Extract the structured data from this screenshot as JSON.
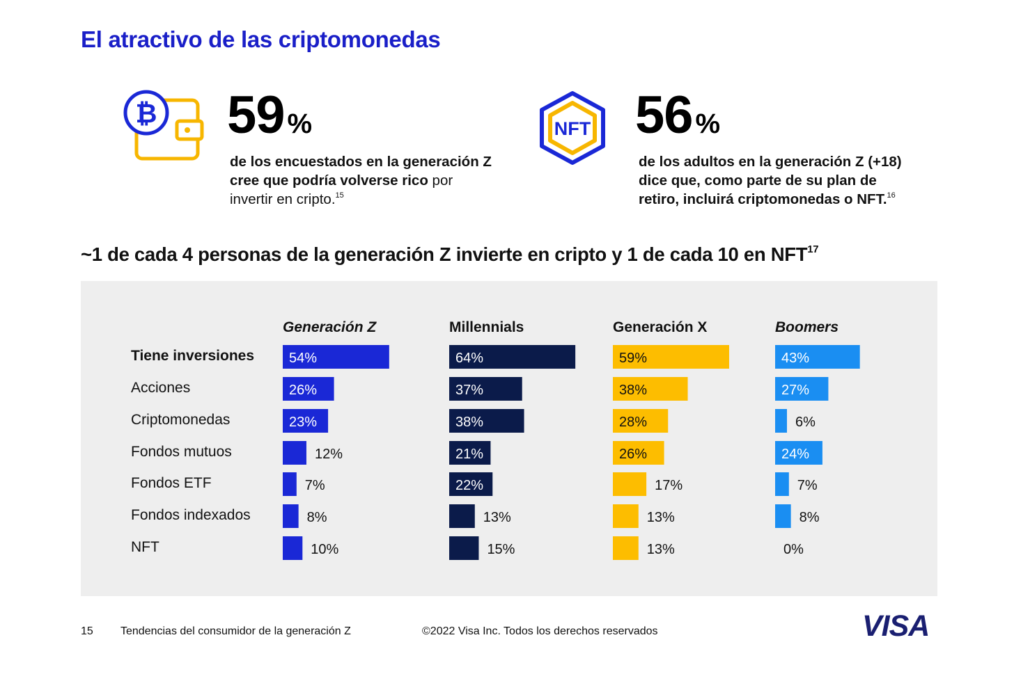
{
  "title": "El atractivo de las criptomonedas",
  "stats": [
    {
      "icon": "bitcoin-wallet-icon",
      "value": "59",
      "unit": "%",
      "desc_bold": "de los encuestados en la generación Z cree que podría volverse rico",
      "desc_rest": " por invertir en cripto.",
      "footnote": "15"
    },
    {
      "icon": "nft-hexagon-icon",
      "icon_text": "NFT",
      "value": "56",
      "unit": "%",
      "desc_bold": "de los adultos en la generación Z (+18) dice que, como parte de su plan de retiro, incluirá criptomonedas o NFT.",
      "desc_rest": "",
      "footnote": "16"
    }
  ],
  "subtitle": "~1 de cada 4 personas de la generación Z invierte en cripto y 1 de cada 10 en NFT",
  "subtitle_footnote": "17",
  "chart_data": {
    "type": "bar",
    "orientation": "horizontal",
    "layout": "small-multiples",
    "categories": [
      "Tiene inversiones",
      "Acciones",
      "Criptomonedas",
      "Fondos mutuos",
      "Fondos ETF",
      "Fondos indexados",
      "NFT"
    ],
    "series": [
      {
        "name": "Generación Z",
        "color": "#1a28d6",
        "values": [
          54,
          26,
          23,
          12,
          7,
          8,
          10
        ]
      },
      {
        "name": "Millennials",
        "color": "#0b1b4a",
        "values": [
          64,
          37,
          38,
          21,
          22,
          13,
          15
        ]
      },
      {
        "name": "Generación X",
        "color": "#fdbd00",
        "values": [
          59,
          38,
          28,
          26,
          17,
          13,
          13
        ]
      },
      {
        "name": "Boomers",
        "color": "#1a8ef2",
        "values": [
          43,
          27,
          6,
          24,
          7,
          8,
          0
        ]
      }
    ],
    "value_suffix": "%",
    "background": "#eeeeee"
  },
  "footer": {
    "page": "15",
    "text": "Tendencias del consumidor de la generación Z",
    "copyright": "©2022 Visa Inc. Todos los derechos reservados",
    "logo": "VISA"
  },
  "colors": {
    "accent": "#1a1fc8",
    "gold": "#f7b600",
    "visa_blue": "#1a1f71"
  }
}
